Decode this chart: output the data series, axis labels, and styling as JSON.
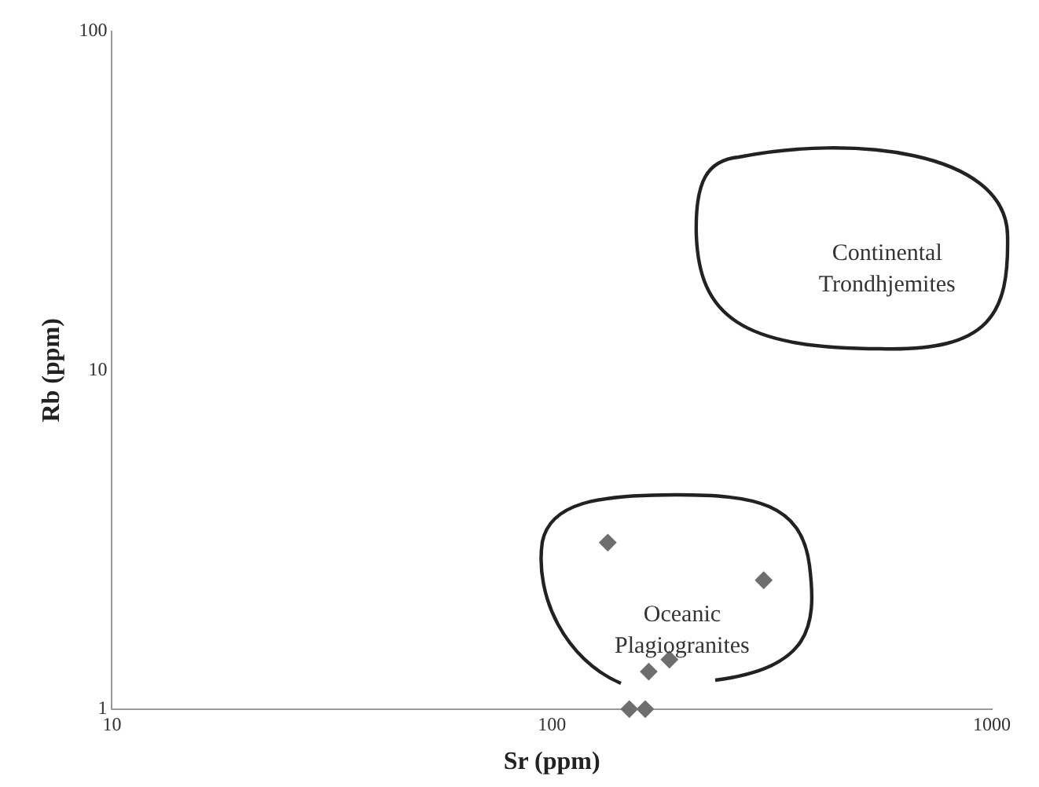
{
  "chart_data": {
    "type": "scatter",
    "xlabel": "Sr (ppm)",
    "ylabel": "Rb (ppm)",
    "log": "xy",
    "xlim": [
      10,
      1000
    ],
    "xticks": [
      10,
      100,
      1000
    ],
    "ylim": [
      1,
      100
    ],
    "yticks": [
      1,
      10,
      100
    ],
    "grid": false,
    "legend": false,
    "marker": "diamond",
    "series": [
      {
        "color": "#6e6e6e",
        "x": [
          134,
          303,
          166,
          185,
          150,
          163
        ],
        "values": [
          3.1,
          2.4,
          1.29,
          1.4,
          1,
          1
        ]
      }
    ],
    "annotations": [
      "Continental Trondhjemites",
      "Oceanic Plagiogranites"
    ]
  }
}
